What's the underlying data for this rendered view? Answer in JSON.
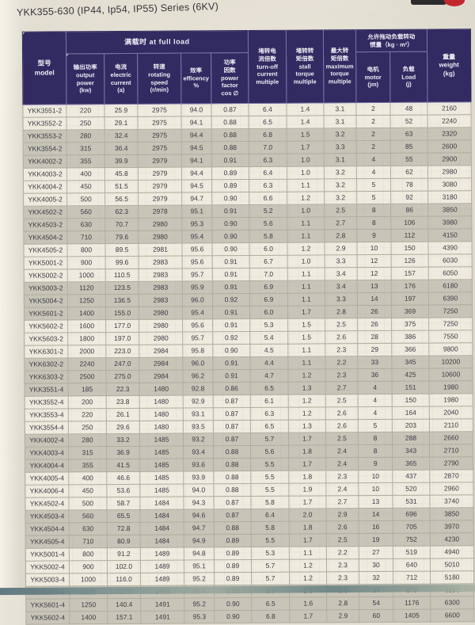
{
  "page": {
    "title": "YKK355-630 (IP44, Ip54, IP55) Series (6KV)"
  },
  "decor": {
    "header_color": "#322b61",
    "accent_red": "#c3272e",
    "row_shade_dark": "#c8c5b8",
    "row_shade_light": "#efebdf"
  },
  "table": {
    "headers": {
      "model": "型号\nmodel",
      "full_load": "满载时 at full load",
      "output_power": "输出功率\noutput\npower\n(kw)",
      "current": "电流\nelectric\ncurrent\n(a)",
      "speed": "转速\nrotating\nspeed\n(r/min)",
      "efficiency": "效率\nefficency\n%",
      "power_factor": "功率\n因数\npower\nfactor\ncos ∅",
      "turnoff": "堵转电\n流倍数\nturn-off\ncurrent\nmultiple",
      "stall": "堵转转\n矩倍数\nstall\ntorque\nmultiple",
      "max_torque": "最大转\n矩倍数\nmaximum\ntorque\nmultiple",
      "inertia": "允许拖动负载转动\n惯量（kg · m²）",
      "motor": "电机\nmotor\n(jm)",
      "load": "负载\nLoad\n(j)",
      "weight": "重量\nweight\n(kg)"
    },
    "rows": [
      [
        "YKK3551-2",
        "220",
        "25.9",
        "2975",
        "94.0",
        "0.87",
        "6.4",
        "1.4",
        "3.1",
        "2",
        "48",
        "2160"
      ],
      [
        "YKK3552-2",
        "250",
        "29.1",
        "2975",
        "94.1",
        "0.88",
        "6.5",
        "1.4",
        "3.1",
        "2",
        "52",
        "2240"
      ],
      [
        "YKK3553-2",
        "280",
        "32.4",
        "2975",
        "94.4",
        "0.88",
        "6.8",
        "1.5",
        "3.2",
        "2",
        "63",
        "2320"
      ],
      [
        "YKK3554-2",
        "315",
        "36.4",
        "2975",
        "94.5",
        "0.88",
        "7.0",
        "1.7",
        "3.3",
        "2",
        "85",
        "2600"
      ],
      [
        "YKK4002-2",
        "355",
        "39.9",
        "2979",
        "94.1",
        "0.91",
        "6.3",
        "1.0",
        "3.1",
        "4",
        "55",
        "2900"
      ],
      [
        "YKK4003-2",
        "400",
        "45.8",
        "2979",
        "94.4",
        "0.89",
        "6.4",
        "1.0",
        "3.2",
        "4",
        "62",
        "2980"
      ],
      [
        "YKK4004-2",
        "450",
        "51.5",
        "2979",
        "94.5",
        "0.89",
        "6.3",
        "1.1",
        "3.2",
        "5",
        "78",
        "3080"
      ],
      [
        "YKK4005-2",
        "500",
        "56.5",
        "2979",
        "94.7",
        "0.90",
        "6.6",
        "1.2",
        "3.2",
        "5",
        "92",
        "3180"
      ],
      [
        "YKK4502-2",
        "560",
        "62.3",
        "2978",
        "95.1",
        "0.91",
        "5.2",
        "1.0",
        "2.5",
        "8",
        "86",
        "3850"
      ],
      [
        "YKK4503-2",
        "630",
        "70.7",
        "2980",
        "95.3",
        "0.90",
        "5.6",
        "1.1",
        "2.7",
        "8",
        "106",
        "3980"
      ],
      [
        "YKK4504-2",
        "710",
        "79.6",
        "2980",
        "95.4",
        "0.90",
        "5.8",
        "1.1",
        "2.8",
        "9",
        "112",
        "4150"
      ],
      [
        "YKK4505-2",
        "800",
        "89.5",
        "2981",
        "95.6",
        "0.90",
        "6.0",
        "1.2",
        "2.9",
        "10",
        "150",
        "4390"
      ],
      [
        "YKK5001-2",
        "900",
        "99.6",
        "2983",
        "95.6",
        "0.91",
        "6.7",
        "1.0",
        "3.3",
        "12",
        "126",
        "6030"
      ],
      [
        "YKK5002-2",
        "1000",
        "110.5",
        "2983",
        "95.7",
        "0.91",
        "7.0",
        "1.1",
        "3.4",
        "12",
        "157",
        "6050"
      ],
      [
        "YKK5003-2",
        "1120",
        "123.5",
        "2983",
        "95.9",
        "0.91",
        "6.9",
        "1.1",
        "3.4",
        "13",
        "176",
        "6180"
      ],
      [
        "YKK5004-2",
        "1250",
        "136.5",
        "2983",
        "96.0",
        "0.92",
        "6.9",
        "1.1",
        "3.3",
        "14",
        "197",
        "6390"
      ],
      [
        "YKK5601-2",
        "1400",
        "155.0",
        "2980",
        "95.4",
        "0.91",
        "6.0",
        "1.7",
        "2.8",
        "26",
        "369",
        "7250"
      ],
      [
        "YKK5602-2",
        "1600",
        "177.0",
        "2980",
        "95.6",
        "0.91",
        "5.3",
        "1.5",
        "2.5",
        "26",
        "375",
        "7250"
      ],
      [
        "YKK5603-2",
        "1800",
        "197.0",
        "2980",
        "95.7",
        "0.92",
        "5.4",
        "1.5",
        "2.6",
        "28",
        "386",
        "7550"
      ],
      [
        "YKK6301-2",
        "2000",
        "223.0",
        "2984",
        "95.8",
        "0.90",
        "4.5",
        "1.1",
        "2.3",
        "29",
        "366",
        "9800"
      ],
      [
        "YKK6302-2",
        "2240",
        "247.0",
        "2984",
        "96.0",
        "0.91",
        "4.4",
        "1.1",
        "2.2",
        "33",
        "345",
        "10200"
      ],
      [
        "YKK6303-2",
        "2500",
        "275.0",
        "2984",
        "96.2",
        "0.91",
        "4.7",
        "1.2",
        "2.3",
        "36",
        "425",
        "10600"
      ],
      [
        "YKK3551-4",
        "185",
        "22.3",
        "1480",
        "92.8",
        "0.86",
        "6.5",
        "1.3",
        "2.7",
        "4",
        "151",
        "1980"
      ],
      [
        "YKK3552-4",
        "200",
        "23.8",
        "1480",
        "92.9",
        "0.87",
        "6.1",
        "1.2",
        "2.5",
        "4",
        "150",
        "1980"
      ],
      [
        "YKK3553-4",
        "220",
        "26.1",
        "1480",
        "93.1",
        "0.87",
        "6.3",
        "1.2",
        "2.6",
        "4",
        "164",
        "2040"
      ],
      [
        "YKK3554-4",
        "250",
        "29.6",
        "1480",
        "93.5",
        "0.87",
        "6.5",
        "1.3",
        "2.6",
        "5",
        "203",
        "2110"
      ],
      [
        "YKK4002-4",
        "280",
        "33.2",
        "1485",
        "93.2",
        "0.87",
        "5.7",
        "1.7",
        "2.5",
        "8",
        "288",
        "2660"
      ],
      [
        "YKK4003-4",
        "315",
        "36.9",
        "1485",
        "93.4",
        "0.88",
        "5.6",
        "1.8",
        "2.4",
        "8",
        "343",
        "2710"
      ],
      [
        "YKK4004-4",
        "355",
        "41.5",
        "1485",
        "93.6",
        "0.88",
        "5.5",
        "1.7",
        "2.4",
        "9",
        "365",
        "2790"
      ],
      [
        "YKK4005-4",
        "400",
        "46.6",
        "1485",
        "93.9",
        "0.88",
        "5.5",
        "1.8",
        "2.3",
        "10",
        "437",
        "2870"
      ],
      [
        "YKK4006-4",
        "450",
        "53.6",
        "1485",
        "94.0",
        "0.88",
        "5.5",
        "1.9",
        "2.4",
        "10",
        "520",
        "2960"
      ],
      [
        "YKK4502-4",
        "500",
        "58.7",
        "1484",
        "94.3",
        "0.87",
        "5.8",
        "1.7",
        "2.7",
        "13",
        "531",
        "3740"
      ],
      [
        "YKK4503-4",
        "560",
        "65.5",
        "1484",
        "94.6",
        "0.87",
        "6.4",
        "2.0",
        "2.9",
        "14",
        "696",
        "3850"
      ],
      [
        "YKK4504-4",
        "630",
        "72.8",
        "1484",
        "94.7",
        "0.88",
        "5.8",
        "1.8",
        "2.6",
        "16",
        "705",
        "3970"
      ],
      [
        "YKK4505-4",
        "710",
        "80.9",
        "1484",
        "94.9",
        "0.89",
        "5.5",
        "1.7",
        "2.5",
        "19",
        "752",
        "4230"
      ],
      [
        "YKK5001-4",
        "800",
        "91.2",
        "1489",
        "94.8",
        "0.89",
        "5.3",
        "1.1",
        "2.2",
        "27",
        "519",
        "4940"
      ],
      [
        "YKK5002-4",
        "900",
        "102.0",
        "1489",
        "95.1",
        "0.89",
        "5.7",
        "1.2",
        "2.3",
        "30",
        "640",
        "5010"
      ],
      [
        "YKK5003-4",
        "1000",
        "116.0",
        "1489",
        "95.2",
        "0.89",
        "5.7",
        "1.2",
        "2.3",
        "32",
        "712",
        "5180"
      ],
      [
        "YKK5004-4",
        "1120",
        "127.0",
        "1489",
        "95.4",
        "0.89",
        "5.7",
        "1.3",
        "2.3",
        "34",
        "870",
        "5280"
      ],
      [
        "YKK5601-4",
        "1250",
        "140.4",
        "1491",
        "95.2",
        "0.90",
        "6.5",
        "1.6",
        "2.8",
        "54",
        "1176",
        "6300"
      ],
      [
        "YKK5602-4",
        "1400",
        "157.1",
        "1491",
        "95.3",
        "0.90",
        "6.8",
        "1.7",
        "2.9",
        "60",
        "1405",
        "6600"
      ]
    ]
  }
}
